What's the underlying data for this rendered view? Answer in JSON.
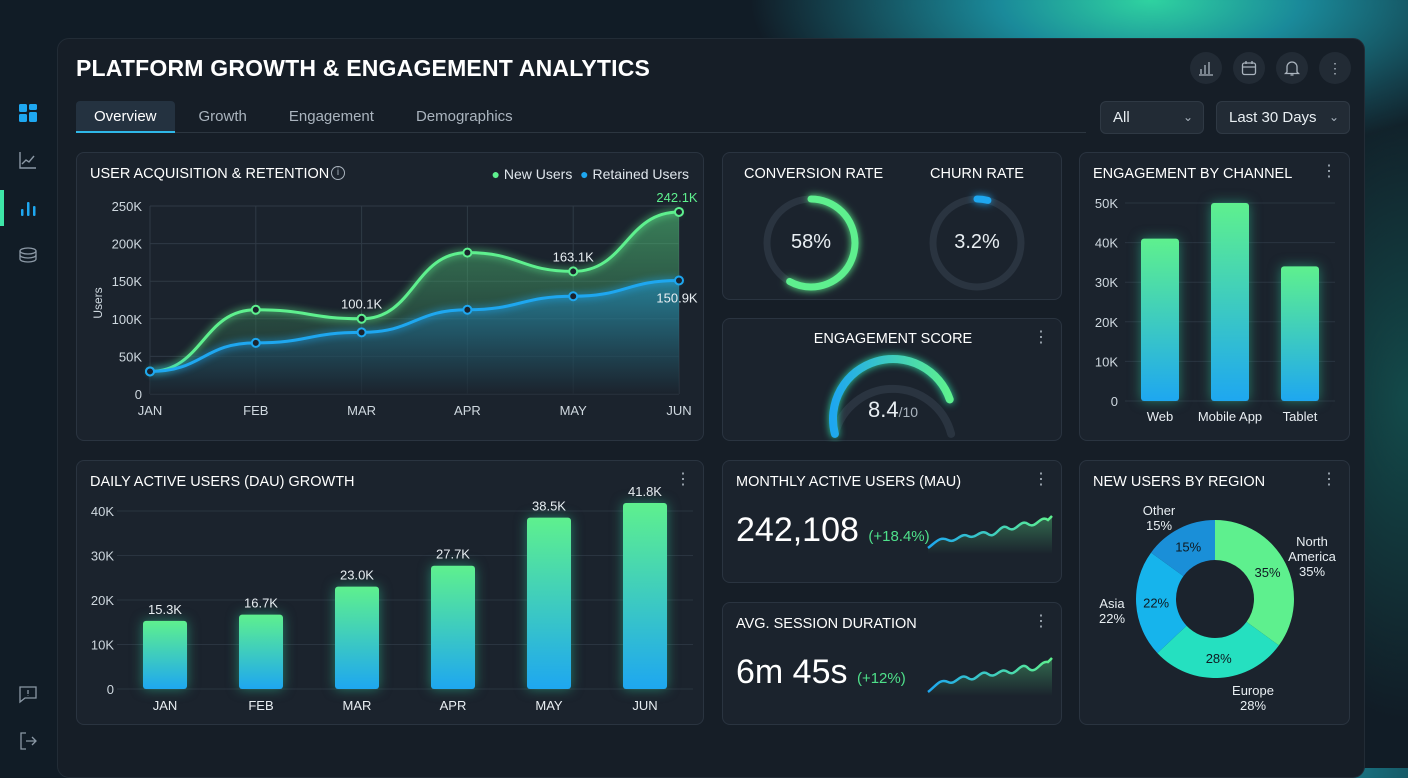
{
  "sidebar": {
    "items": [
      {
        "icon": "dashboard-icon"
      },
      {
        "icon": "line-chart-icon"
      },
      {
        "icon": "bar-chart-icon",
        "active": true
      },
      {
        "icon": "layers-icon"
      }
    ],
    "bottom": [
      {
        "icon": "feedback-icon"
      },
      {
        "icon": "logout-icon"
      }
    ]
  },
  "header": {
    "title": "PLATFORM GROWTH & ENGAGEMENT ANALYTICS",
    "actions": [
      "bar-chart-icon",
      "calendar-icon",
      "bell-icon",
      "more-icon"
    ]
  },
  "tabs": [
    {
      "label": "Overview",
      "active": true
    },
    {
      "label": "Growth"
    },
    {
      "label": "Engagement"
    },
    {
      "label": "Demographics"
    }
  ],
  "filters": {
    "segment": "All",
    "range": "Last 30 Days"
  },
  "colors": {
    "green": "#5ef08e",
    "blue": "#1ea7f0",
    "teal": "#25e0c0"
  },
  "acquisition": {
    "title": "USER ACQUISITION & RETENTION",
    "legend": [
      "New Users",
      "Retained Users"
    ]
  },
  "conversion": {
    "label": "CONVERSION RATE",
    "value": "58%",
    "fraction": 0.58
  },
  "churn": {
    "label": "CHURN RATE",
    "value": "3.2%",
    "fraction": 0.032
  },
  "engagement_score": {
    "label": "ENGAGEMENT SCORE",
    "value": "8.4",
    "suffix": "/10",
    "score": 8.4
  },
  "channel": {
    "title": "ENGAGEMENT BY CHANNEL"
  },
  "dau": {
    "title": "DAILY ACTIVE USERS (DAU) GROWTH"
  },
  "mau": {
    "title": "MONTHLY ACTIVE USERS (MAU)",
    "value": "242,108",
    "change": "(+18.4%)"
  },
  "session": {
    "title": "AVG. SESSION DURATION",
    "value": "6m 45s",
    "change": "(+12%)"
  },
  "region": {
    "title": "NEW USERS BY REGION"
  },
  "chart_data": [
    {
      "type": "line",
      "title": "USER ACQUISITION & RETENTION",
      "ylabel": "Users",
      "ylim": [
        0,
        250000
      ],
      "yticks": [
        "0",
        "50K",
        "100K",
        "150K",
        "200K",
        "250K"
      ],
      "categories": [
        "JAN",
        "FEB",
        "MAR",
        "APR",
        "MAY",
        "JUN"
      ],
      "series": [
        {
          "name": "New Users",
          "values": [
            30000,
            112000,
            100100,
            188000,
            163100,
            242100
          ],
          "labels": [
            "",
            "",
            "100.1K",
            "",
            "163.1K",
            "242.1K"
          ]
        },
        {
          "name": "Retained Users",
          "values": [
            30000,
            68000,
            82000,
            112000,
            130000,
            150900
          ],
          "labels": [
            "",
            "",
            "",
            "",
            "",
            "150.9K"
          ]
        }
      ],
      "grid": true,
      "legend": "top-right"
    },
    {
      "type": "bar",
      "title": "ENGAGEMENT BY CHANNEL",
      "categories": [
        "Web",
        "Mobile App",
        "Tablet"
      ],
      "values": [
        41000,
        50000,
        34000
      ],
      "ylim": [
        0,
        50000
      ],
      "yticks": [
        "0",
        "10K",
        "20K",
        "30K",
        "40K",
        "50K"
      ]
    },
    {
      "type": "bar",
      "title": "DAILY ACTIVE USERS (DAU) GROWTH",
      "categories": [
        "JAN",
        "FEB",
        "MAR",
        "APR",
        "MAY",
        "JUN"
      ],
      "values": [
        15300,
        16700,
        23000,
        27700,
        38500,
        41800
      ],
      "labels": [
        "15.3K",
        "16.7K",
        "23.0K",
        "27.7K",
        "38.5K",
        "41.8K"
      ],
      "ylim": [
        0,
        40000
      ],
      "yticks": [
        "0",
        "10K",
        "20K",
        "30K",
        "40K"
      ]
    },
    {
      "type": "pie",
      "title": "NEW USERS BY REGION",
      "categories": [
        "North America",
        "Europe",
        "Asia",
        "Other"
      ],
      "values": [
        35,
        28,
        22,
        15
      ],
      "labels": [
        "35%",
        "28%",
        "22%",
        "15%"
      ]
    }
  ]
}
